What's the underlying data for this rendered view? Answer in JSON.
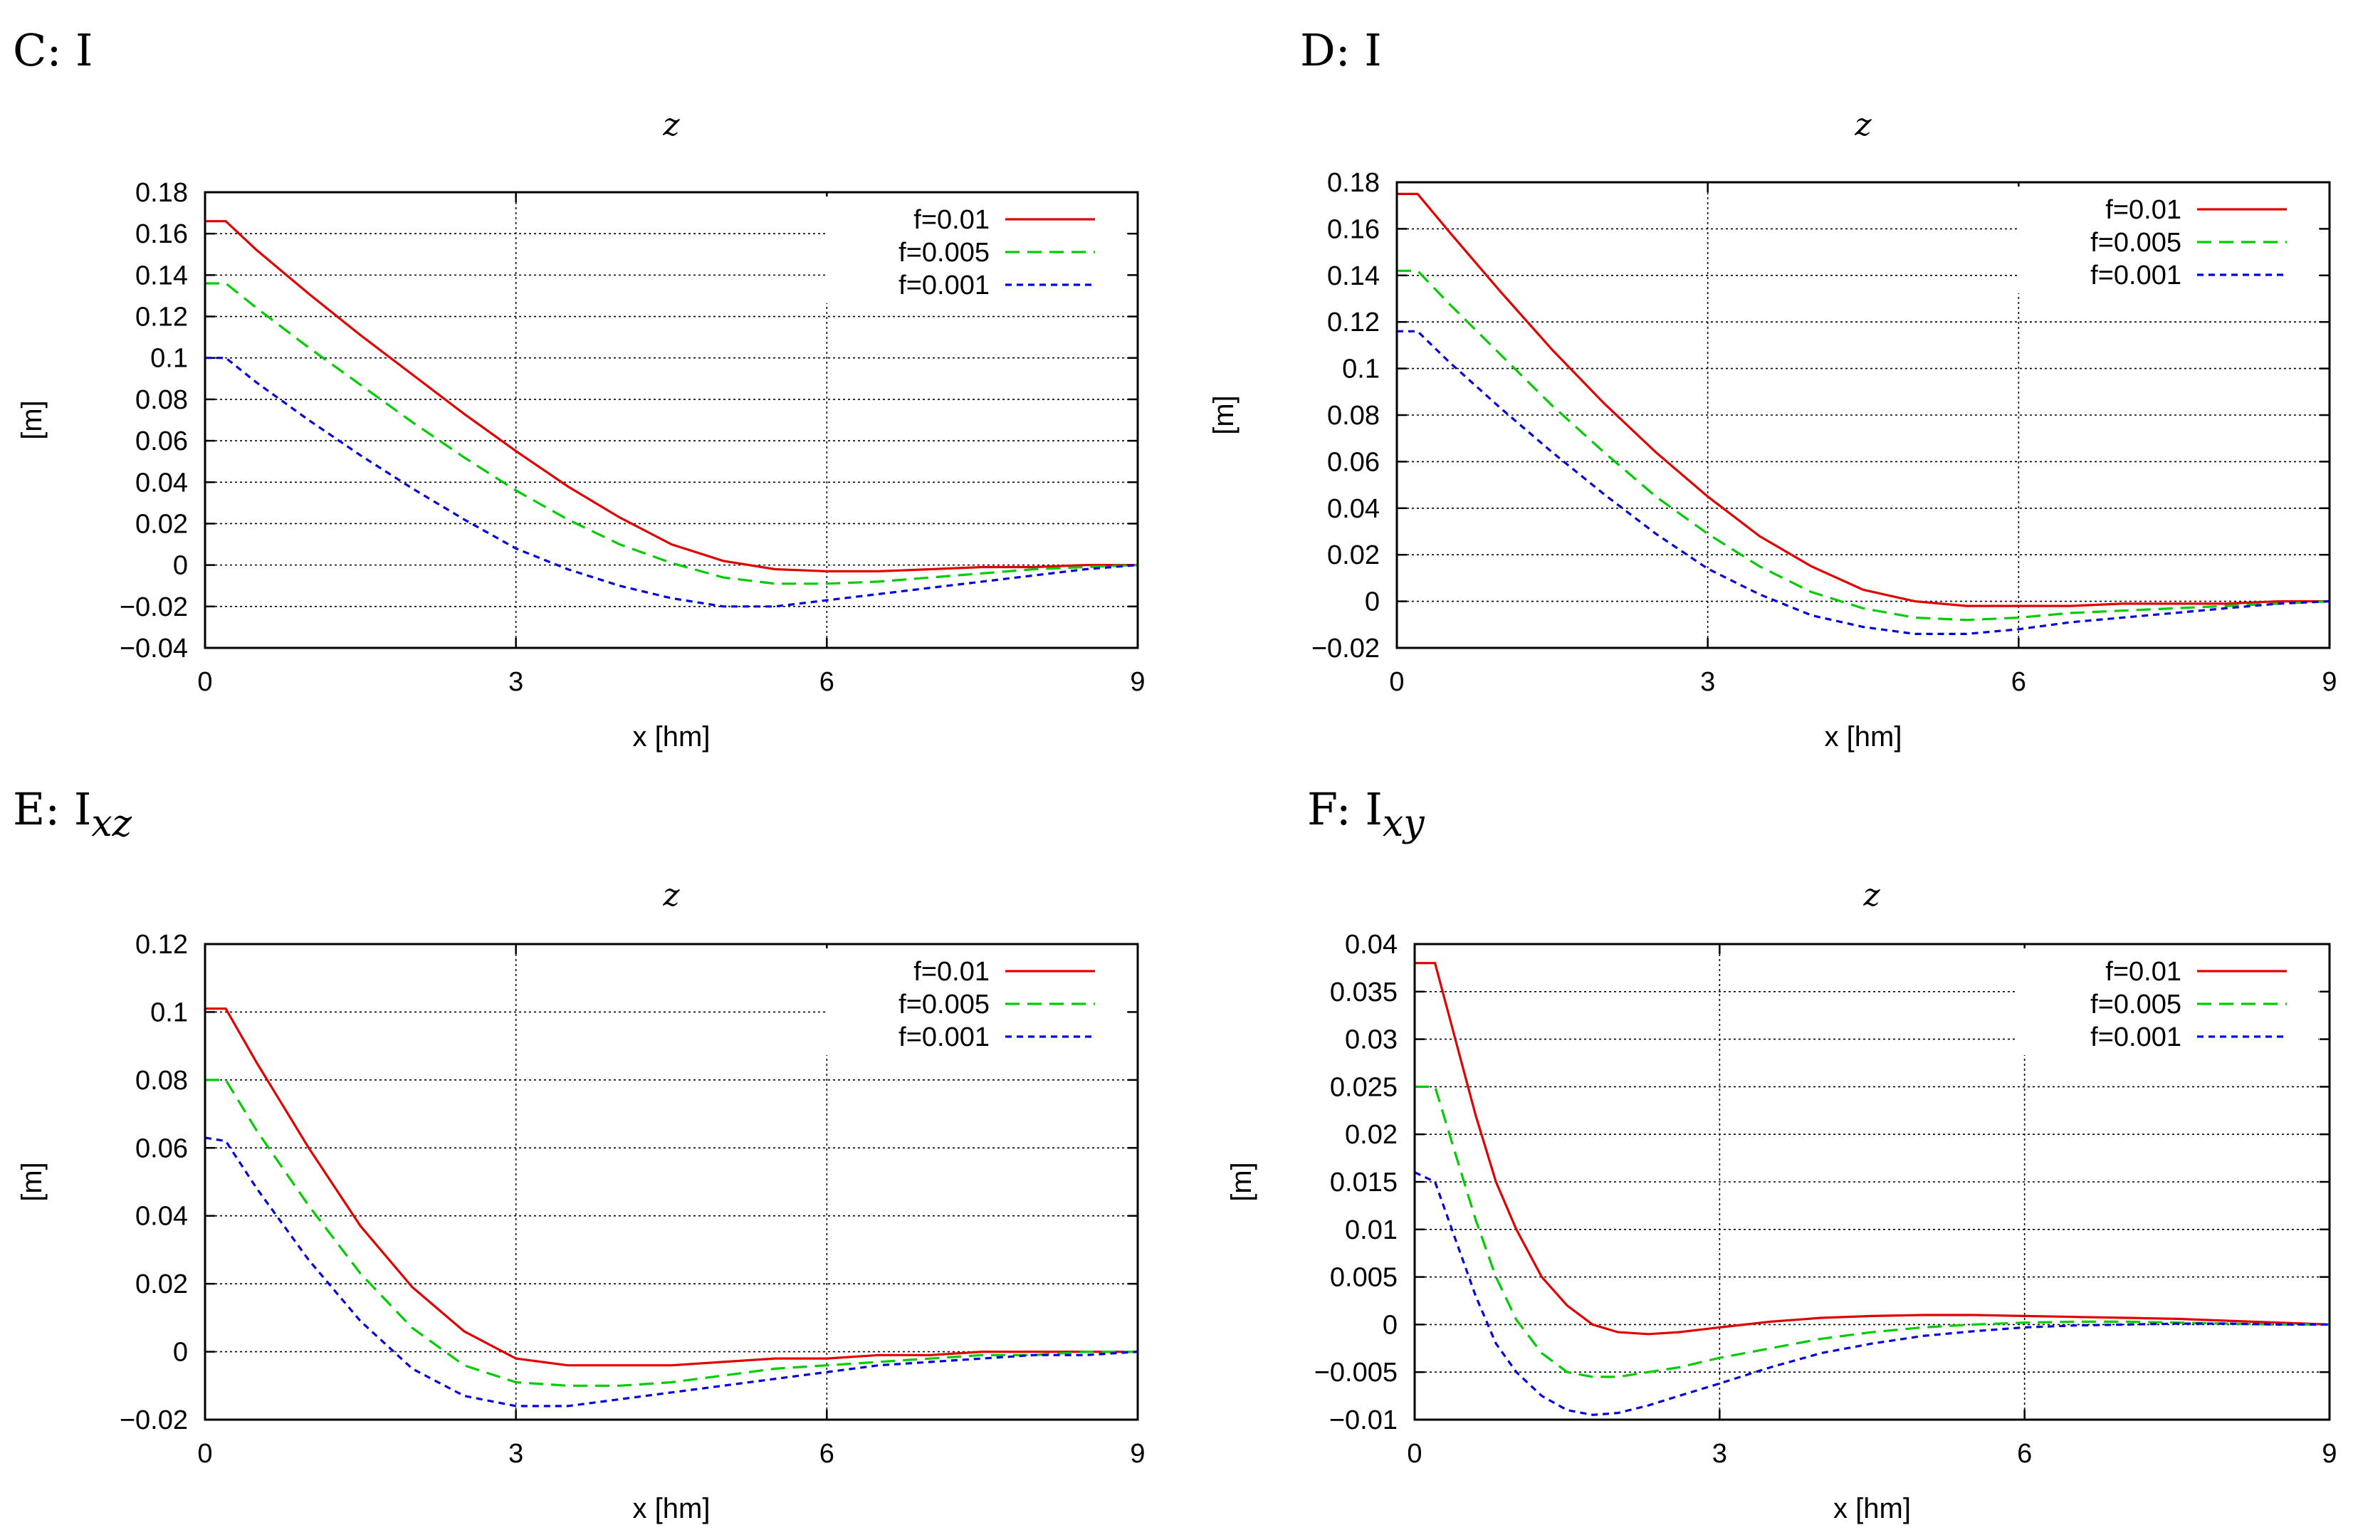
{
  "colors": {
    "f=0.01": "#e00000",
    "f=0.005": "#00cc00",
    "f=0.001": "#0000dd"
  },
  "chart_data": [
    {
      "type": "line",
      "panel_label": "C: I",
      "panel_subscript": "",
      "title": "z",
      "xlabel": "x [hm]",
      "ylabel": "[m]",
      "xlim": [
        0,
        9
      ],
      "ylim": [
        -0.04,
        0.18
      ],
      "xticks": [
        0,
        3,
        6,
        9
      ],
      "yticks": [
        -0.04,
        -0.02,
        0,
        0.02,
        0.04,
        0.06,
        0.08,
        0.1,
        0.12,
        0.14,
        0.16,
        0.18
      ],
      "ytick_labels": [
        "−0.04",
        "−0.02",
        "0",
        "0.02",
        "0.04",
        "0.06",
        "0.08",
        "0.1",
        "0.12",
        "0.14",
        "0.16",
        "0.18"
      ],
      "legend": "top-right",
      "series": [
        {
          "name": "f=0.01",
          "dash": "solid",
          "x": [
            0,
            0.2,
            0.5,
            1,
            1.5,
            2,
            2.5,
            3,
            3.5,
            4,
            4.5,
            5,
            5.5,
            6,
            6.5,
            7,
            7.5,
            8,
            8.5,
            9
          ],
          "y": [
            0.166,
            0.166,
            0.152,
            0.131,
            0.111,
            0.092,
            0.073,
            0.055,
            0.038,
            0.023,
            0.01,
            0.002,
            -0.002,
            -0.003,
            -0.003,
            -0.002,
            -0.001,
            -0.001,
            0,
            0
          ]
        },
        {
          "name": "f=0.005",
          "dash": "dashed",
          "x": [
            0,
            0.2,
            0.5,
            1,
            1.5,
            2,
            2.5,
            3,
            3.5,
            4,
            4.5,
            5,
            5.5,
            6,
            6.5,
            7,
            7.5,
            8,
            8.5,
            9
          ],
          "y": [
            0.136,
            0.136,
            0.124,
            0.105,
            0.087,
            0.069,
            0.052,
            0.036,
            0.022,
            0.01,
            0.001,
            -0.006,
            -0.009,
            -0.009,
            -0.008,
            -0.006,
            -0.004,
            -0.002,
            -0.001,
            0
          ]
        },
        {
          "name": "f=0.001",
          "dash": "dotted",
          "x": [
            0,
            0.2,
            0.5,
            1,
            1.5,
            2,
            2.5,
            3,
            3.5,
            4,
            4.5,
            5,
            5.5,
            6,
            6.5,
            7,
            7.5,
            8,
            8.5,
            9
          ],
          "y": [
            0.1,
            0.1,
            0.088,
            0.07,
            0.053,
            0.037,
            0.022,
            0.008,
            -0.002,
            -0.01,
            -0.016,
            -0.02,
            -0.02,
            -0.017,
            -0.014,
            -0.011,
            -0.008,
            -0.005,
            -0.002,
            0
          ]
        }
      ]
    },
    {
      "type": "line",
      "panel_label": "D: I",
      "panel_subscript": "",
      "title": "z",
      "xlabel": "x [hm]",
      "ylabel": "[m]",
      "xlim": [
        0,
        9
      ],
      "ylim": [
        -0.02,
        0.18
      ],
      "xticks": [
        0,
        3,
        6,
        9
      ],
      "yticks": [
        -0.02,
        0,
        0.02,
        0.04,
        0.06,
        0.08,
        0.1,
        0.12,
        0.14,
        0.16,
        0.18
      ],
      "ytick_labels": [
        "−0.02",
        "0",
        "0.02",
        "0.04",
        "0.06",
        "0.08",
        "0.1",
        "0.12",
        "0.14",
        "0.16",
        "0.18"
      ],
      "legend": "top-right",
      "series": [
        {
          "name": "f=0.01",
          "dash": "solid",
          "x": [
            0,
            0.2,
            0.5,
            1,
            1.5,
            2,
            2.5,
            3,
            3.5,
            4,
            4.5,
            5,
            5.5,
            6,
            6.5,
            7,
            7.5,
            8,
            8.5,
            9
          ],
          "y": [
            0.175,
            0.175,
            0.159,
            0.133,
            0.108,
            0.085,
            0.064,
            0.045,
            0.028,
            0.015,
            0.005,
            0,
            -0.002,
            -0.002,
            -0.002,
            -0.001,
            -0.001,
            -0.001,
            0,
            0
          ]
        },
        {
          "name": "f=0.005",
          "dash": "dashed",
          "x": [
            0,
            0.2,
            0.5,
            1,
            1.5,
            2,
            2.5,
            3,
            3.5,
            4,
            4.5,
            5,
            5.5,
            6,
            6.5,
            7,
            7.5,
            8,
            8.5,
            9
          ],
          "y": [
            0.142,
            0.142,
            0.128,
            0.106,
            0.084,
            0.064,
            0.045,
            0.029,
            0.015,
            0.004,
            -0.003,
            -0.007,
            -0.008,
            -0.007,
            -0.005,
            -0.004,
            -0.003,
            -0.002,
            -0.001,
            0
          ]
        },
        {
          "name": "f=0.001",
          "dash": "dotted",
          "x": [
            0,
            0.2,
            0.5,
            1,
            1.5,
            2,
            2.5,
            3,
            3.5,
            4,
            4.5,
            5,
            5.5,
            6,
            6.5,
            7,
            7.5,
            8,
            8.5,
            9
          ],
          "y": [
            0.116,
            0.116,
            0.103,
            0.083,
            0.064,
            0.046,
            0.029,
            0.014,
            0.003,
            -0.006,
            -0.011,
            -0.014,
            -0.014,
            -0.012,
            -0.009,
            -0.007,
            -0.005,
            -0.003,
            -0.001,
            0
          ]
        }
      ]
    },
    {
      "type": "line",
      "panel_label": "E: I",
      "panel_subscript": "xz",
      "title": "z",
      "xlabel": "x [hm]",
      "ylabel": "[m]",
      "xlim": [
        0,
        9
      ],
      "ylim": [
        -0.02,
        0.12
      ],
      "xticks": [
        0,
        3,
        6,
        9
      ],
      "yticks": [
        -0.02,
        0,
        0.02,
        0.04,
        0.06,
        0.08,
        0.1,
        0.12
      ],
      "ytick_labels": [
        "−0.02",
        "0",
        "0.02",
        "0.04",
        "0.06",
        "0.08",
        "0.1",
        "0.12"
      ],
      "legend": "top-right",
      "series": [
        {
          "name": "f=0.01",
          "dash": "solid",
          "x": [
            0,
            0.2,
            0.5,
            1,
            1.5,
            2,
            2.5,
            3,
            3.5,
            4,
            4.5,
            5,
            5.5,
            6,
            6.5,
            7,
            7.5,
            8,
            8.5,
            9
          ],
          "y": [
            0.101,
            0.101,
            0.085,
            0.06,
            0.037,
            0.019,
            0.006,
            -0.002,
            -0.004,
            -0.004,
            -0.004,
            -0.003,
            -0.002,
            -0.002,
            -0.001,
            -0.001,
            0,
            0,
            0,
            0
          ]
        },
        {
          "name": "f=0.005",
          "dash": "dashed",
          "x": [
            0,
            0.2,
            0.5,
            1,
            1.5,
            2,
            2.5,
            3,
            3.5,
            4,
            4.5,
            5,
            5.5,
            6,
            6.5,
            7,
            7.5,
            8,
            8.5,
            9
          ],
          "y": [
            0.08,
            0.08,
            0.065,
            0.043,
            0.023,
            0.007,
            -0.004,
            -0.009,
            -0.01,
            -0.01,
            -0.009,
            -0.007,
            -0.005,
            -0.004,
            -0.003,
            -0.002,
            -0.001,
            -0.001,
            0,
            0
          ]
        },
        {
          "name": "f=0.001",
          "dash": "dotted",
          "x": [
            0,
            0.2,
            0.5,
            1,
            1.5,
            2,
            2.5,
            3,
            3.5,
            4,
            4.5,
            5,
            5.5,
            6,
            6.5,
            7,
            7.5,
            8,
            8.5,
            9
          ],
          "y": [
            0.063,
            0.062,
            0.048,
            0.027,
            0.009,
            -0.005,
            -0.013,
            -0.016,
            -0.016,
            -0.014,
            -0.012,
            -0.01,
            -0.008,
            -0.006,
            -0.004,
            -0.003,
            -0.002,
            -0.001,
            -0.001,
            0
          ]
        }
      ]
    },
    {
      "type": "line",
      "panel_label": "F: I",
      "panel_subscript": "xy",
      "title": "z",
      "xlabel": "x [hm]",
      "ylabel": "[m]",
      "xlim": [
        0,
        9
      ],
      "ylim": [
        -0.01,
        0.04
      ],
      "xticks": [
        0,
        3,
        6,
        9
      ],
      "yticks": [
        -0.01,
        -0.005,
        0,
        0.005,
        0.01,
        0.015,
        0.02,
        0.025,
        0.03,
        0.035,
        0.04
      ],
      "ytick_labels": [
        "−0.01",
        "−0.005",
        "0",
        "0.005",
        "0.01",
        "0.015",
        "0.02",
        "0.025",
        "0.03",
        "0.035",
        "0.04"
      ],
      "legend": "top-right",
      "series": [
        {
          "name": "f=0.01",
          "dash": "solid",
          "x": [
            0,
            0.2,
            0.4,
            0.6,
            0.8,
            1,
            1.25,
            1.5,
            1.75,
            2,
            2.3,
            2.6,
            3,
            3.5,
            4,
            4.5,
            5,
            5.5,
            6,
            6.5,
            7,
            7.5,
            8,
            8.5,
            9
          ],
          "y": [
            0.038,
            0.038,
            0.03,
            0.022,
            0.015,
            0.01,
            0.005,
            0.002,
            0,
            -0.0008,
            -0.001,
            -0.0008,
            -0.0003,
            0.0003,
            0.0007,
            0.0009,
            0.001,
            0.001,
            0.0009,
            0.0008,
            0.0007,
            0.0006,
            0.0004,
            0.0002,
            0
          ]
        },
        {
          "name": "f=0.005",
          "dash": "dashed",
          "x": [
            0,
            0.2,
            0.4,
            0.6,
            0.8,
            1,
            1.25,
            1.5,
            1.75,
            2,
            2.3,
            2.6,
            3,
            3.5,
            4,
            4.5,
            5,
            5.5,
            6,
            6.5,
            7,
            7.5,
            8,
            8.5,
            9
          ],
          "y": [
            0.025,
            0.025,
            0.018,
            0.011,
            0.005,
            0.0005,
            -0.003,
            -0.005,
            -0.0055,
            -0.0055,
            -0.005,
            -0.0045,
            -0.0035,
            -0.0025,
            -0.0015,
            -0.0008,
            -0.0003,
            0,
            0.0002,
            0.0003,
            0.0003,
            0.0002,
            0.0001,
            0,
            0
          ]
        },
        {
          "name": "f=0.001",
          "dash": "dotted",
          "x": [
            0,
            0.2,
            0.4,
            0.6,
            0.8,
            1,
            1.25,
            1.5,
            1.75,
            2,
            2.3,
            2.6,
            3,
            3.5,
            4,
            4.5,
            5,
            5.5,
            6,
            6.5,
            7,
            7.5,
            8,
            8.5,
            9
          ],
          "y": [
            0.016,
            0.015,
            0.009,
            0.003,
            -0.002,
            -0.005,
            -0.0075,
            -0.009,
            -0.0095,
            -0.0093,
            -0.0085,
            -0.0075,
            -0.0062,
            -0.0045,
            -0.003,
            -0.002,
            -0.0012,
            -0.0007,
            -0.0003,
            -0.0001,
            0,
            0.0001,
            0.0001,
            0,
            0
          ]
        }
      ]
    }
  ]
}
